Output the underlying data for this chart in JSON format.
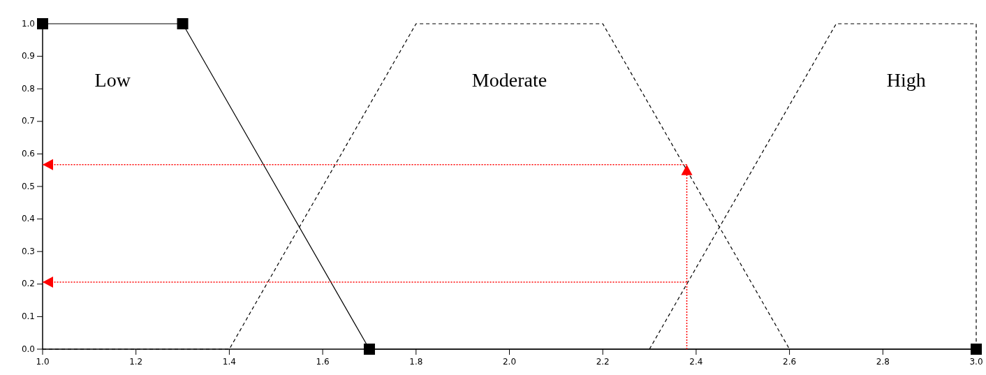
{
  "chart_data": {
    "type": "line",
    "xlim": [
      1.0,
      3.0
    ],
    "ylim": [
      0,
      1
    ],
    "xticks": [
      {
        "value": 1.0,
        "label": "1.0"
      },
      {
        "value": 1.2,
        "label": "1.2"
      },
      {
        "value": 1.4,
        "label": "1.4"
      },
      {
        "value": 1.6,
        "label": "1.6"
      },
      {
        "value": 1.8,
        "label": "1.8"
      },
      {
        "value": 2.0,
        "label": "2.0"
      },
      {
        "value": 2.2,
        "label": "2.2"
      },
      {
        "value": 2.4,
        "label": "2.4"
      },
      {
        "value": 2.6,
        "label": "2.6"
      },
      {
        "value": 2.8,
        "label": "2.8"
      },
      {
        "value": 3.0,
        "label": "3.0"
      }
    ],
    "yticks": [
      {
        "value": 0,
        "label": "0.0"
      },
      {
        "value": 0.1,
        "label": "0.1"
      },
      {
        "value": 0.2,
        "label": "0.2"
      },
      {
        "value": 0.3,
        "label": "0.3"
      },
      {
        "value": 0.4,
        "label": "0.4"
      },
      {
        "value": 0.5,
        "label": "0.5"
      },
      {
        "value": 0.6,
        "label": "0.6"
      },
      {
        "value": 0.7,
        "label": "0.7"
      },
      {
        "value": 0.8,
        "label": "0.8"
      },
      {
        "value": 0.9,
        "label": "0.9"
      },
      {
        "value": 1.0,
        "label": "1.0"
      }
    ],
    "grid": false,
    "series": [
      {
        "name": "Low",
        "color": "#000000",
        "x": [
          1.0,
          1.3,
          1.7,
          3.0
        ],
        "values": [
          1,
          1,
          0,
          0
        ],
        "line_style": "solid",
        "marker": "square"
      },
      {
        "name": "Moderate",
        "color": "#000000",
        "x": [
          1.0,
          1.4,
          1.8,
          2.2,
          2.6
        ],
        "values": [
          0,
          0,
          1,
          1,
          0
        ],
        "line_style": "dashed",
        "marker": "none"
      },
      {
        "name": "High",
        "color": "#000000",
        "x": [
          2.3,
          2.7,
          3.0,
          3.0
        ],
        "values": [
          0,
          1,
          1,
          0
        ],
        "line_style": "dashed",
        "marker": "none"
      },
      {
        "color": "#ff0000",
        "x": [
          2.38,
          2.38
        ],
        "values": [
          0,
          0.567
        ],
        "line_style": "dotted"
      },
      {
        "color": "#ff0000",
        "x": [
          2.38,
          1.0
        ],
        "values": [
          0.567,
          0.567
        ],
        "line_style": "dotted"
      },
      {
        "color": "#ff0000",
        "x": [
          2.38,
          1.0
        ],
        "values": [
          0.206,
          0.206
        ],
        "line_style": "dotted"
      }
    ]
  }
}
